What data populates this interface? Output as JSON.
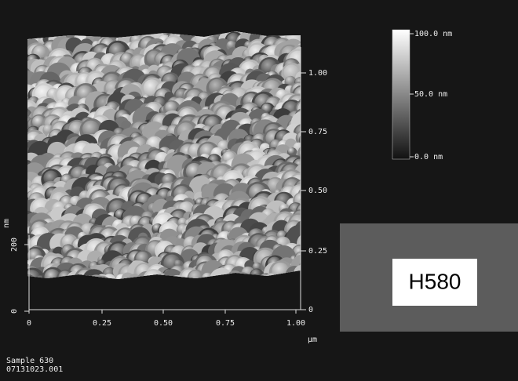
{
  "x_axis": {
    "ticks": [
      "0",
      "0.25",
      "0.50",
      "0.75",
      "1.00"
    ],
    "unit": "µm"
  },
  "right_axis": {
    "ticks": [
      "0",
      "0.25",
      "0.50",
      "0.75",
      "1.00"
    ]
  },
  "z_axis": {
    "ticks": [
      "0",
      "200"
    ],
    "unit": "nm"
  },
  "color_bar": {
    "labels": [
      "100.0 nm",
      "50.0 nm",
      "0.0 nm"
    ]
  },
  "label_box": {
    "text": "H580"
  },
  "footer": {
    "lines": [
      "Sample 630",
      "07131023.001"
    ]
  }
}
